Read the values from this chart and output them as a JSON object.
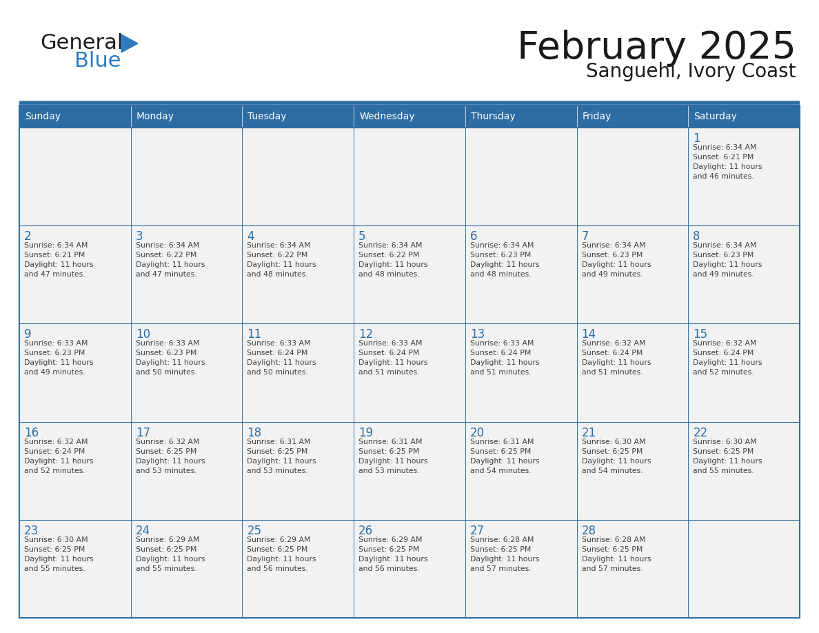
{
  "title": "February 2025",
  "subtitle": "Sanguehi, Ivory Coast",
  "days_of_week": [
    "Sunday",
    "Monday",
    "Tuesday",
    "Wednesday",
    "Thursday",
    "Friday",
    "Saturday"
  ],
  "header_bg": "#2E6DA4",
  "header_text": "#FFFFFF",
  "cell_bg": "#F2F2F2",
  "border_color": "#2E6DA4",
  "day_num_color": "#2E6DA4",
  "cell_text_color": "#404040",
  "title_color": "#1a1a1a",
  "subtitle_color": "#1a1a1a",
  "logo_general_color": "#1a1a1a",
  "logo_blue_color": "#2E7ABF",
  "weeks": [
    [
      {
        "day": null,
        "info": ""
      },
      {
        "day": null,
        "info": ""
      },
      {
        "day": null,
        "info": ""
      },
      {
        "day": null,
        "info": ""
      },
      {
        "day": null,
        "info": ""
      },
      {
        "day": null,
        "info": ""
      },
      {
        "day": 1,
        "info": "Sunrise: 6:34 AM\nSunset: 6:21 PM\nDaylight: 11 hours\nand 46 minutes."
      }
    ],
    [
      {
        "day": 2,
        "info": "Sunrise: 6:34 AM\nSunset: 6:21 PM\nDaylight: 11 hours\nand 47 minutes."
      },
      {
        "day": 3,
        "info": "Sunrise: 6:34 AM\nSunset: 6:22 PM\nDaylight: 11 hours\nand 47 minutes."
      },
      {
        "day": 4,
        "info": "Sunrise: 6:34 AM\nSunset: 6:22 PM\nDaylight: 11 hours\nand 48 minutes."
      },
      {
        "day": 5,
        "info": "Sunrise: 6:34 AM\nSunset: 6:22 PM\nDaylight: 11 hours\nand 48 minutes."
      },
      {
        "day": 6,
        "info": "Sunrise: 6:34 AM\nSunset: 6:23 PM\nDaylight: 11 hours\nand 48 minutes."
      },
      {
        "day": 7,
        "info": "Sunrise: 6:34 AM\nSunset: 6:23 PM\nDaylight: 11 hours\nand 49 minutes."
      },
      {
        "day": 8,
        "info": "Sunrise: 6:34 AM\nSunset: 6:23 PM\nDaylight: 11 hours\nand 49 minutes."
      }
    ],
    [
      {
        "day": 9,
        "info": "Sunrise: 6:33 AM\nSunset: 6:23 PM\nDaylight: 11 hours\nand 49 minutes."
      },
      {
        "day": 10,
        "info": "Sunrise: 6:33 AM\nSunset: 6:23 PM\nDaylight: 11 hours\nand 50 minutes."
      },
      {
        "day": 11,
        "info": "Sunrise: 6:33 AM\nSunset: 6:24 PM\nDaylight: 11 hours\nand 50 minutes."
      },
      {
        "day": 12,
        "info": "Sunrise: 6:33 AM\nSunset: 6:24 PM\nDaylight: 11 hours\nand 51 minutes."
      },
      {
        "day": 13,
        "info": "Sunrise: 6:33 AM\nSunset: 6:24 PM\nDaylight: 11 hours\nand 51 minutes."
      },
      {
        "day": 14,
        "info": "Sunrise: 6:32 AM\nSunset: 6:24 PM\nDaylight: 11 hours\nand 51 minutes."
      },
      {
        "day": 15,
        "info": "Sunrise: 6:32 AM\nSunset: 6:24 PM\nDaylight: 11 hours\nand 52 minutes."
      }
    ],
    [
      {
        "day": 16,
        "info": "Sunrise: 6:32 AM\nSunset: 6:24 PM\nDaylight: 11 hours\nand 52 minutes."
      },
      {
        "day": 17,
        "info": "Sunrise: 6:32 AM\nSunset: 6:25 PM\nDaylight: 11 hours\nand 53 minutes."
      },
      {
        "day": 18,
        "info": "Sunrise: 6:31 AM\nSunset: 6:25 PM\nDaylight: 11 hours\nand 53 minutes."
      },
      {
        "day": 19,
        "info": "Sunrise: 6:31 AM\nSunset: 6:25 PM\nDaylight: 11 hours\nand 53 minutes."
      },
      {
        "day": 20,
        "info": "Sunrise: 6:31 AM\nSunset: 6:25 PM\nDaylight: 11 hours\nand 54 minutes."
      },
      {
        "day": 21,
        "info": "Sunrise: 6:30 AM\nSunset: 6:25 PM\nDaylight: 11 hours\nand 54 minutes."
      },
      {
        "day": 22,
        "info": "Sunrise: 6:30 AM\nSunset: 6:25 PM\nDaylight: 11 hours\nand 55 minutes."
      }
    ],
    [
      {
        "day": 23,
        "info": "Sunrise: 6:30 AM\nSunset: 6:25 PM\nDaylight: 11 hours\nand 55 minutes."
      },
      {
        "day": 24,
        "info": "Sunrise: 6:29 AM\nSunset: 6:25 PM\nDaylight: 11 hours\nand 55 minutes."
      },
      {
        "day": 25,
        "info": "Sunrise: 6:29 AM\nSunset: 6:25 PM\nDaylight: 11 hours\nand 56 minutes."
      },
      {
        "day": 26,
        "info": "Sunrise: 6:29 AM\nSunset: 6:25 PM\nDaylight: 11 hours\nand 56 minutes."
      },
      {
        "day": 27,
        "info": "Sunrise: 6:28 AM\nSunset: 6:25 PM\nDaylight: 11 hours\nand 57 minutes."
      },
      {
        "day": 28,
        "info": "Sunrise: 6:28 AM\nSunset: 6:25 PM\nDaylight: 11 hours\nand 57 minutes."
      },
      {
        "day": null,
        "info": ""
      }
    ]
  ]
}
